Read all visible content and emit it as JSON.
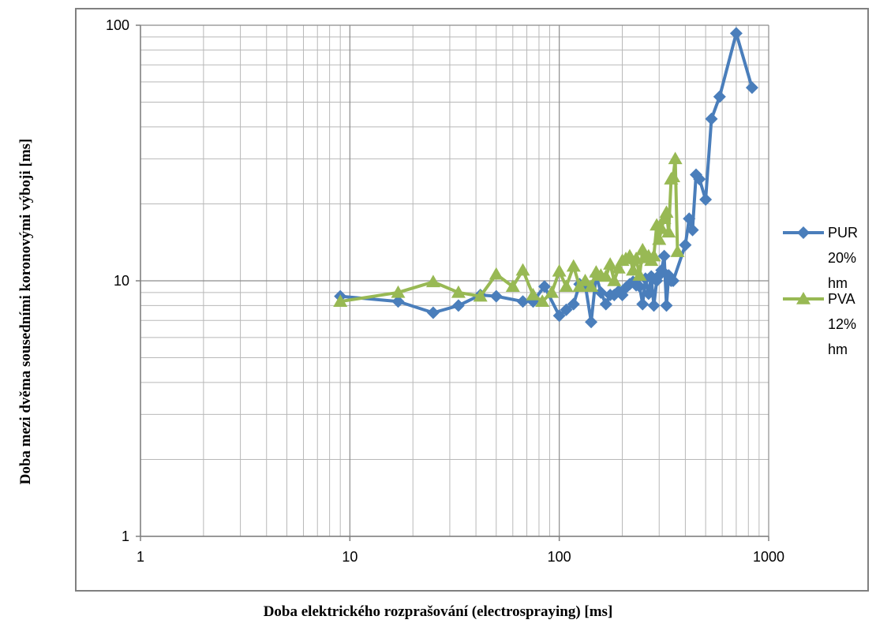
{
  "chart_data": {
    "type": "line",
    "title": "",
    "xlabel": "Doba elektrického rozprašování (electrospraying)  [ms]",
    "ylabel": "Doba mezi dvěma sousedními koronovými výboji [ms]",
    "x_scale": "log",
    "y_scale": "log",
    "xlim": [
      1,
      1000
    ],
    "ylim": [
      1,
      100
    ],
    "x_ticks": [
      "1",
      "10",
      "100",
      "1000"
    ],
    "y_ticks": [
      "1",
      "10",
      "100"
    ],
    "grid": true,
    "legend_position": "right",
    "series": [
      {
        "name": "PUR 20% hm",
        "legend_lines": [
          "PUR",
          "20%",
          "hm"
        ],
        "color": "#4a7ebb",
        "marker": "diamond",
        "x": [
          9,
          17,
          25,
          33,
          42,
          50,
          67,
          75,
          85,
          100,
          108,
          117,
          125,
          133,
          142,
          150,
          158,
          167,
          175,
          183,
          192,
          200,
          208,
          217,
          225,
          233,
          242,
          250,
          258,
          267,
          275,
          283,
          292,
          300,
          308,
          317,
          325,
          333,
          342,
          350,
          400,
          417,
          433,
          450,
          467,
          500,
          533,
          583,
          700,
          833
        ],
        "y": [
          8.7,
          8.3,
          7.5,
          8.0,
          8.8,
          8.7,
          8.3,
          8.3,
          9.5,
          7.3,
          7.7,
          8.1,
          9.7,
          9.7,
          6.9,
          10.5,
          9.0,
          8.1,
          8.8,
          8.8,
          9.1,
          8.8,
          9.4,
          9.7,
          9.9,
          9.6,
          9.5,
          8.1,
          10.2,
          8.9,
          10.4,
          8.0,
          10.0,
          10.5,
          11.0,
          12.5,
          8.0,
          10.5,
          10.0,
          10.0,
          13.8,
          17.5,
          15.8,
          26.0,
          25.0,
          20.8,
          43.0,
          52.5,
          93.0,
          57.0
        ]
      },
      {
        "name": "PVA 12% hm",
        "legend_lines": [
          "PVA",
          "12%",
          "hm"
        ],
        "color": "#98b954",
        "marker": "triangle",
        "x": [
          9,
          17,
          25,
          33,
          42,
          50,
          60,
          67,
          75,
          83,
          92,
          100,
          108,
          117,
          125,
          133,
          142,
          150,
          158,
          167,
          175,
          183,
          192,
          200,
          208,
          217,
          225,
          233,
          242,
          250,
          258,
          267,
          275,
          283,
          292,
          300,
          308,
          317,
          325,
          333,
          342,
          350,
          358,
          367
        ],
        "y": [
          8.3,
          9.0,
          9.9,
          9.0,
          8.7,
          10.6,
          9.5,
          11.0,
          8.8,
          8.3,
          9.0,
          10.9,
          9.5,
          11.4,
          9.5,
          10.0,
          9.5,
          10.8,
          10.5,
          10.4,
          11.6,
          10.0,
          11.2,
          12.0,
          12.2,
          12.5,
          11.0,
          12.2,
          10.5,
          13.2,
          12.3,
          12.5,
          12.0,
          12.5,
          16.5,
          14.5,
          16.0,
          17.5,
          18.5,
          15.5,
          25.0,
          25.5,
          30.0,
          13.0
        ]
      }
    ]
  }
}
